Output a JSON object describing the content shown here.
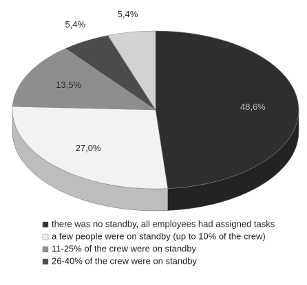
{
  "chart_data": {
    "type": "pie",
    "categories": [
      "there was no standby, all employees had assigned tasks",
      "a few people were on standby (up to 10% of the crew)",
      "11-25% of the crew were on standby",
      "26-40% of the crew were on standby",
      null
    ],
    "values": [
      48.6,
      27.0,
      13.5,
      5.4,
      5.4
    ],
    "value_labels": [
      "48,6%",
      "27,0%",
      "13,5%",
      "5,4%",
      "5,4%"
    ],
    "colors": [
      "#2e2e2e",
      "#f2f2f2",
      "#8e8e8e",
      "#4b4b4b",
      "#d2d2d2"
    ]
  }
}
